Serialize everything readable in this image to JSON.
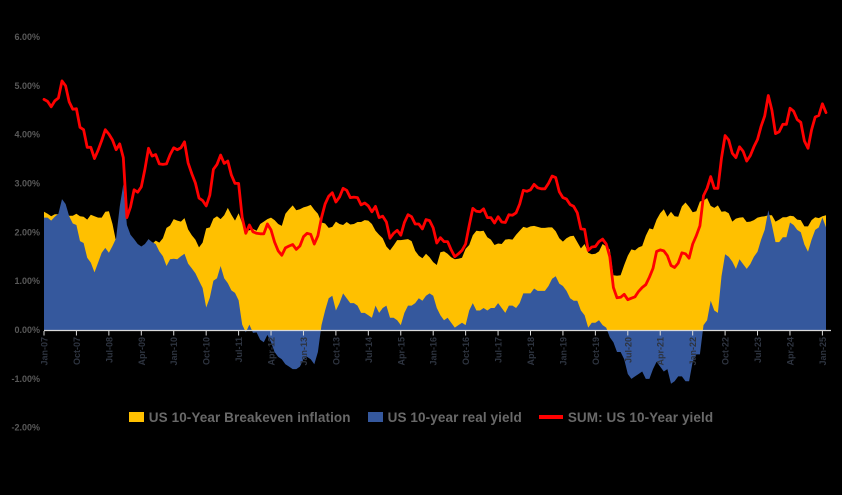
{
  "page": {
    "background": "#000000"
  },
  "legend": {
    "items": [
      {
        "label": "US 10-Year Breakeven inflation",
        "marker": "area-swatch",
        "color": "#FFC000"
      },
      {
        "label": "US 10-year real yield",
        "marker": "area-swatch",
        "color": "#35589D"
      },
      {
        "label": "SUM: US 10-Year yield",
        "marker": "line-swatch",
        "color": "#FF0000"
      }
    ],
    "text_color": "#696969"
  },
  "chart_data": {
    "type": "area",
    "title": "",
    "frequency": "monthly",
    "x_start": "Jan-07",
    "x_end": "Feb-25",
    "x_tick_every_months": 9,
    "x_tick_labels": [
      "Jan-07",
      "Oct-07",
      "Jul-08",
      "Apr-09",
      "Jan-10",
      "Oct-10",
      "Jul-11",
      "Apr-12",
      "Jan-13",
      "Oct-13",
      "Jul-14",
      "Apr-15",
      "Jan-16",
      "Oct-16",
      "Jul-17",
      "Apr-18",
      "Jan-19",
      "Oct-19",
      "Jul-20",
      "Apr-21",
      "Jan-22",
      "Oct-22",
      "Jul-23",
      "Apr-24",
      "Jan-25"
    ],
    "y_ticks": [
      "6.00%",
      "5.00%",
      "4.00%",
      "3.00%",
      "2.00%",
      "1.00%",
      "0.00%",
      "-1.00%",
      "-2.00%"
    ],
    "ylim": [
      -2,
      6
    ],
    "grid": false,
    "legend_position": "bottom",
    "areas_overlap_not_stacked": true,
    "axis": {
      "line_color": "#D9D9D9",
      "y_label_color": "#595959",
      "x_label_color": "#2E3440"
    },
    "series": [
      {
        "name": "US 10-Year Breakeven inflation",
        "render": "area",
        "color": "#FFC000",
        "values": [
          2.42,
          2.38,
          2.33,
          2.37,
          2.37,
          2.42,
          2.42,
          2.34,
          2.34,
          2.38,
          2.33,
          2.32,
          2.26,
          2.36,
          2.33,
          2.3,
          2.3,
          2.42,
          2.43,
          2.17,
          1.81,
          1.29,
          0.55,
          0.15,
          0.57,
          1.01,
          1.06,
          1.22,
          1.53,
          1.86,
          1.76,
          1.83,
          1.79,
          1.88,
          2.09,
          2.14,
          2.27,
          2.24,
          2.22,
          2.29,
          2.06,
          1.94,
          1.85,
          1.69,
          1.79,
          2.08,
          2.1,
          2.28,
          2.33,
          2.27,
          2.35,
          2.5,
          2.36,
          2.24,
          2.39,
          2.19,
          2.03,
          2.04,
          2.07,
          2.03,
          2.17,
          2.22,
          2.27,
          2.3,
          2.25,
          2.17,
          2.13,
          2.38,
          2.47,
          2.55,
          2.45,
          2.47,
          2.51,
          2.53,
          2.56,
          2.46,
          2.38,
          2.2,
          2.18,
          2.09,
          2.11,
          2.22,
          2.17,
          2.15,
          2.21,
          2.16,
          2.17,
          2.21,
          2.21,
          2.25,
          2.24,
          2.17,
          2.03,
          1.95,
          1.88,
          1.71,
          1.63,
          1.73,
          1.84,
          1.84,
          1.85,
          1.86,
          1.82,
          1.62,
          1.52,
          1.47,
          1.56,
          1.49,
          1.39,
          1.33,
          1.59,
          1.61,
          1.56,
          1.49,
          1.45,
          1.46,
          1.48,
          1.66,
          1.74,
          1.94,
          2.03,
          2.02,
          2.03,
          1.9,
          1.85,
          1.74,
          1.77,
          1.76,
          1.85,
          1.86,
          1.85,
          1.95,
          2.03,
          2.11,
          2.09,
          2.12,
          2.13,
          2.11,
          2.09,
          2.09,
          2.1,
          2.1,
          2.02,
          1.88,
          1.81,
          1.88,
          1.92,
          1.93,
          1.8,
          1.67,
          1.76,
          1.58,
          1.55,
          1.56,
          1.61,
          1.76,
          1.71,
          1.65,
          1.12,
          1.11,
          1.12,
          1.33,
          1.52,
          1.65,
          1.63,
          1.69,
          1.72,
          1.93,
          2.08,
          2.06,
          2.26,
          2.39,
          2.47,
          2.32,
          2.42,
          2.33,
          2.32,
          2.53,
          2.61,
          2.52,
          2.41,
          2.43,
          2.63,
          2.65,
          2.7,
          2.54,
          2.5,
          2.55,
          2.42,
          2.43,
          2.39,
          2.22,
          2.28,
          2.3,
          2.31,
          2.21,
          2.22,
          2.25,
          2.3,
          2.32,
          2.33,
          2.35,
          2.35,
          2.22,
          2.26,
          2.31,
          2.31,
          2.34,
          2.33,
          2.26,
          2.25,
          2.12,
          2.12,
          2.25,
          2.31,
          2.29,
          2.33,
          2.35
        ]
      },
      {
        "name": "US 10-year real yield",
        "render": "area",
        "color": "#35589D",
        "values": [
          2.3,
          2.3,
          2.24,
          2.32,
          2.38,
          2.68,
          2.58,
          2.33,
          2.18,
          2.15,
          1.82,
          1.78,
          1.48,
          1.38,
          1.18,
          1.38,
          1.58,
          1.68,
          1.58,
          1.72,
          1.88,
          2.52,
          2.98,
          2.15,
          1.95,
          1.86,
          1.76,
          1.71,
          1.76,
          1.86,
          1.8,
          1.76,
          1.61,
          1.51,
          1.31,
          1.45,
          1.46,
          1.45,
          1.51,
          1.56,
          1.36,
          1.26,
          1.16,
          1.01,
          0.86,
          0.46,
          0.66,
          1.01,
          1.06,
          1.31,
          1.06,
          0.96,
          0.81,
          0.76,
          0.61,
          0.11,
          -0.05,
          0.11,
          -0.06,
          -0.05,
          -0.2,
          -0.25,
          -0.1,
          -0.25,
          -0.45,
          -0.55,
          -0.6,
          -0.7,
          -0.75,
          -0.8,
          -0.8,
          -0.75,
          -0.6,
          -0.55,
          -0.6,
          -0.7,
          -0.45,
          0.1,
          0.4,
          0.65,
          0.7,
          0.4,
          0.55,
          0.75,
          0.65,
          0.55,
          0.55,
          0.5,
          0.35,
          0.35,
          0.3,
          0.25,
          0.5,
          0.35,
          0.45,
          0.5,
          0.25,
          0.25,
          0.2,
          0.1,
          0.35,
          0.5,
          0.5,
          0.55,
          0.65,
          0.6,
          0.7,
          0.75,
          0.7,
          0.45,
          0.3,
          0.2,
          0.25,
          0.15,
          0.05,
          0.1,
          0.15,
          0.1,
          0.4,
          0.55,
          0.4,
          0.4,
          0.45,
          0.4,
          0.45,
          0.45,
          0.55,
          0.45,
          0.35,
          0.5,
          0.5,
          0.45,
          0.55,
          0.75,
          0.75,
          0.75,
          0.85,
          0.8,
          0.8,
          0.8,
          0.9,
          1.05,
          1.1,
          0.95,
          0.9,
          0.8,
          0.65,
          0.6,
          0.6,
          0.4,
          0.3,
          0.05,
          0.15,
          0.15,
          0.2,
          0.1,
          0.05,
          -0.15,
          -0.25,
          -0.45,
          -0.45,
          -0.6,
          -0.9,
          -1.0,
          -0.95,
          -0.9,
          -0.85,
          -1.0,
          -1.0,
          -0.8,
          -0.65,
          -0.75,
          -0.85,
          -0.8,
          -1.1,
          -1.05,
          -0.95,
          -0.95,
          -1.05,
          -1.05,
          -0.65,
          -0.5,
          -0.5,
          0.1,
          0.2,
          0.6,
          0.4,
          0.35,
          1.1,
          1.55,
          1.5,
          1.4,
          1.25,
          1.45,
          1.35,
          1.25,
          1.35,
          1.5,
          1.6,
          1.85,
          2.05,
          2.45,
          2.15,
          1.8,
          1.8,
          1.9,
          1.9,
          2.2,
          2.15,
          2.05,
          2.0,
          1.75,
          1.6,
          1.85,
          2.05,
          2.1,
          2.3,
          2.1
        ]
      },
      {
        "name": "SUM: US 10-Year yield",
        "render": "line",
        "color": "#FF0000",
        "stroke_width": 2.8,
        "values": [
          4.72,
          4.68,
          4.57,
          4.69,
          4.75,
          5.1,
          5.0,
          4.67,
          4.52,
          4.53,
          4.15,
          4.1,
          3.74,
          3.74,
          3.51,
          3.68,
          3.88,
          4.1,
          4.01,
          3.89,
          3.69,
          3.81,
          3.53,
          2.3,
          2.52,
          2.87,
          2.82,
          2.93,
          3.29,
          3.72,
          3.56,
          3.59,
          3.4,
          3.39,
          3.4,
          3.59,
          3.73,
          3.69,
          3.73,
          3.85,
          3.42,
          3.2,
          3.01,
          2.7,
          2.65,
          2.54,
          2.76,
          3.29,
          3.39,
          3.58,
          3.41,
          3.46,
          3.17,
          3.0,
          3.0,
          2.3,
          1.98,
          2.15,
          2.01,
          1.98,
          1.97,
          1.97,
          2.17,
          2.05,
          1.8,
          1.62,
          1.53,
          1.68,
          1.72,
          1.75,
          1.65,
          1.72,
          1.91,
          1.98,
          1.96,
          1.76,
          1.93,
          2.3,
          2.58,
          2.74,
          2.81,
          2.62,
          2.72,
          2.9,
          2.86,
          2.71,
          2.72,
          2.71,
          2.56,
          2.6,
          2.54,
          2.42,
          2.53,
          2.3,
          2.33,
          2.21,
          1.88,
          1.98,
          2.04,
          1.94,
          2.2,
          2.36,
          2.32,
          2.17,
          2.17,
          2.07,
          2.26,
          2.24,
          2.09,
          1.78,
          1.89,
          1.81,
          1.81,
          1.64,
          1.5,
          1.56,
          1.63,
          1.76,
          2.14,
          2.49,
          2.43,
          2.42,
          2.48,
          2.3,
          2.3,
          2.19,
          2.32,
          2.21,
          2.2,
          2.36,
          2.35,
          2.4,
          2.58,
          2.86,
          2.84,
          2.87,
          2.98,
          2.91,
          2.89,
          2.89,
          3.0,
          3.15,
          3.12,
          2.83,
          2.71,
          2.68,
          2.57,
          2.53,
          2.4,
          2.07,
          2.06,
          1.63,
          1.7,
          1.71,
          1.81,
          1.86,
          1.76,
          1.5,
          0.87,
          0.66,
          0.67,
          0.73,
          0.62,
          0.65,
          0.68,
          0.79,
          0.87,
          0.93,
          1.08,
          1.26,
          1.61,
          1.64,
          1.62,
          1.52,
          1.32,
          1.28,
          1.37,
          1.58,
          1.56,
          1.47,
          1.76,
          1.93,
          2.13,
          2.75,
          2.9,
          3.14,
          2.9,
          2.9,
          3.52,
          3.98,
          3.89,
          3.62,
          3.53,
          3.75,
          3.66,
          3.46,
          3.57,
          3.75,
          3.9,
          4.17,
          4.38,
          4.8,
          4.5,
          4.02,
          4.06,
          4.21,
          4.21,
          4.54,
          4.48,
          4.31,
          4.25,
          3.87,
          3.72,
          4.1,
          4.36,
          4.39,
          4.63,
          4.45
        ]
      }
    ]
  }
}
